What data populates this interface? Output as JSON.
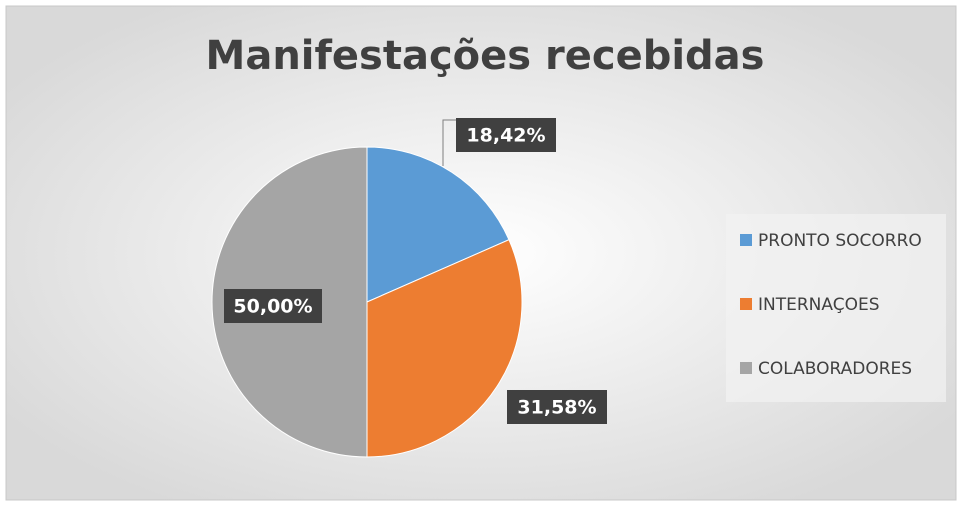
{
  "chart_data": {
    "type": "pie",
    "title": "Manifestações recebidas",
    "categories": [
      "PRONTO SOCORRO",
      "INTERNAÇOES",
      "COLABORADORES"
    ],
    "values": [
      18.42,
      31.58,
      50.0
    ],
    "value_labels": [
      "18,42%",
      "31,58%",
      "50,00%"
    ],
    "colors": [
      "#5b9bd5",
      "#ed7d31",
      "#a5a5a5"
    ],
    "legend": "right"
  }
}
